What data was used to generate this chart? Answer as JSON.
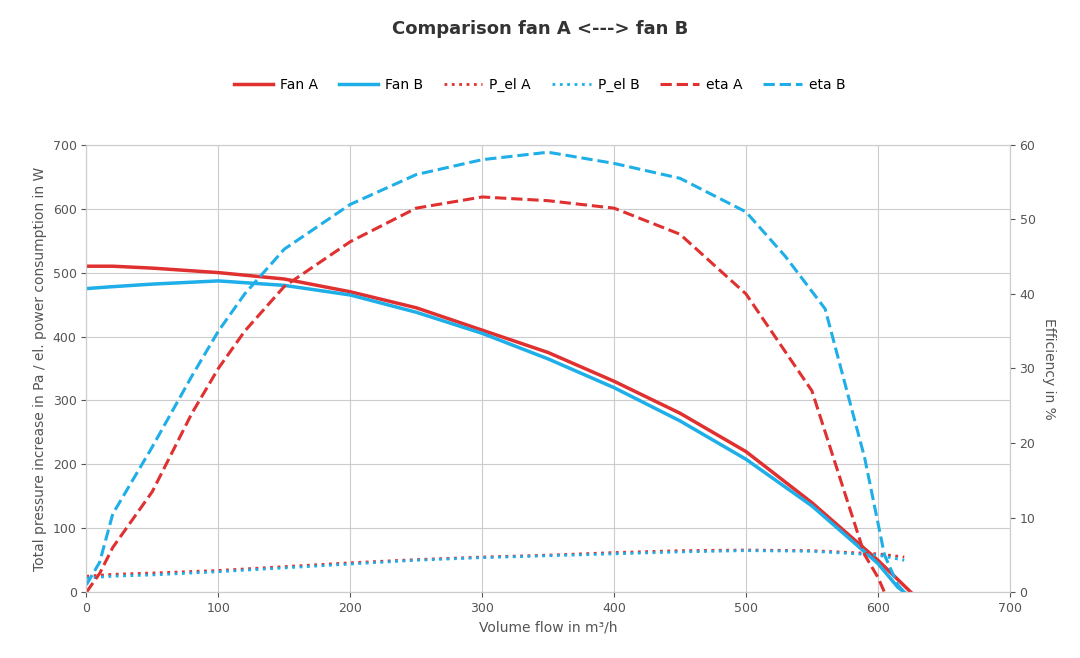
{
  "title": "Comparison fan A <---> fan B",
  "xlabel": "Volume flow in m³/h",
  "ylabel_left": "Total pressure increase in Pa / el. power consumption in W",
  "ylabel_right": "Efficiency in %",
  "xlim": [
    0,
    700
  ],
  "ylim_left": [
    0,
    700
  ],
  "ylim_right": [
    0,
    60
  ],
  "xticks": [
    0,
    100,
    200,
    300,
    400,
    500,
    600,
    700
  ],
  "yticks_left": [
    0,
    100,
    200,
    300,
    400,
    500,
    600,
    700
  ],
  "yticks_right": [
    0,
    10,
    20,
    30,
    40,
    50,
    60
  ],
  "fan_A_color": "#e03030",
  "fan_B_color": "#1eaee8",
  "background_color": "#ffffff",
  "grid_color": "#cccccc",
  "title_fontsize": 13,
  "label_fontsize": 10,
  "fan_A_x": [
    0,
    20,
    50,
    100,
    150,
    200,
    250,
    300,
    350,
    400,
    450,
    500,
    550,
    600,
    620,
    625
  ],
  "fan_A_y": [
    510,
    510,
    507,
    500,
    490,
    470,
    445,
    410,
    375,
    330,
    280,
    220,
    140,
    50,
    10,
    0
  ],
  "fan_B_x": [
    0,
    20,
    50,
    100,
    150,
    200,
    250,
    300,
    350,
    400,
    450,
    500,
    550,
    600,
    615,
    620
  ],
  "fan_B_y": [
    475,
    478,
    482,
    487,
    480,
    465,
    438,
    405,
    365,
    320,
    268,
    208,
    135,
    45,
    8,
    0
  ],
  "pel_A_x": [
    0,
    20,
    50,
    100,
    150,
    200,
    250,
    300,
    350,
    400,
    450,
    500,
    550,
    600,
    620
  ],
  "pel_A_y": [
    25,
    28,
    30,
    34,
    40,
    46,
    51,
    55,
    58,
    62,
    65,
    66,
    65,
    60,
    55
  ],
  "pel_B_x": [
    0,
    20,
    50,
    100,
    150,
    200,
    250,
    300,
    350,
    400,
    450,
    500,
    550,
    600,
    615,
    620
  ],
  "pel_B_y": [
    22,
    25,
    27,
    32,
    38,
    44,
    50,
    54,
    57,
    60,
    63,
    65,
    64,
    58,
    52,
    50
  ],
  "eta_A_x": [
    0,
    10,
    20,
    50,
    80,
    100,
    120,
    150,
    200,
    250,
    300,
    350,
    400,
    450,
    500,
    550,
    590,
    600,
    605
  ],
  "eta_A_y": [
    0.0,
    2.5,
    6.0,
    13.5,
    24.0,
    30.0,
    35.0,
    41.0,
    47.0,
    51.5,
    53.0,
    52.5,
    51.5,
    48.0,
    40.0,
    27.0,
    5.0,
    2.0,
    0.0
  ],
  "eta_B_x": [
    0,
    10,
    20,
    50,
    80,
    100,
    120,
    150,
    200,
    250,
    300,
    350,
    400,
    450,
    500,
    530,
    560,
    590,
    605,
    615,
    620
  ],
  "eta_B_y": [
    1.0,
    4.0,
    10.5,
    19.5,
    29.0,
    35.0,
    40.0,
    46.0,
    52.0,
    56.0,
    58.0,
    59.0,
    57.5,
    55.5,
    51.0,
    45.0,
    38.0,
    18.0,
    5.0,
    1.0,
    0.0
  ]
}
